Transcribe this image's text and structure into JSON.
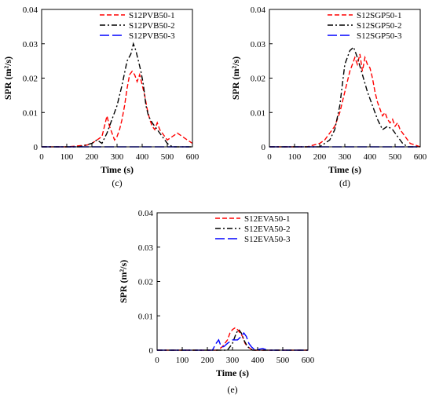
{
  "chart_data": [
    {
      "type": "line",
      "panel_label": "(c)",
      "xlabel": "Time (s)",
      "ylabel": "SPR (m²/s)",
      "xlim": [
        0,
        600
      ],
      "ylim": [
        0,
        0.04
      ],
      "xticks": [
        0,
        100,
        200,
        300,
        400,
        500,
        600
      ],
      "yticks": [
        0,
        0.01,
        0.02,
        0.03,
        0.04
      ],
      "xtick_labels": [
        "0",
        "100",
        "200",
        "300",
        "400",
        "500",
        "600"
      ],
      "ytick_labels": [
        "0",
        "0.01",
        "0.02",
        "0.03",
        "0.04"
      ],
      "grid": false,
      "legend_position": "top-right",
      "series": [
        {
          "name": "S12PVB50-1",
          "color": "#ff0000",
          "dash": "dashed",
          "points": [
            [
              0,
              0
            ],
            [
              100,
              0
            ],
            [
              180,
              0.0005
            ],
            [
              200,
              0.001
            ],
            [
              220,
              0.002
            ],
            [
              240,
              0.003
            ],
            [
              250,
              0.006
            ],
            [
              260,
              0.009
            ],
            [
              270,
              0.006
            ],
            [
              280,
              0.004
            ],
            [
              290,
              0.002
            ],
            [
              300,
              0.003
            ],
            [
              310,
              0.005
            ],
            [
              320,
              0.008
            ],
            [
              330,
              0.012
            ],
            [
              340,
              0.017
            ],
            [
              350,
              0.021
            ],
            [
              360,
              0.022
            ],
            [
              370,
              0.021
            ],
            [
              380,
              0.019
            ],
            [
              390,
              0.021
            ],
            [
              400,
              0.018
            ],
            [
              410,
              0.015
            ],
            [
              420,
              0.011
            ],
            [
              430,
              0.008
            ],
            [
              440,
              0.006
            ],
            [
              450,
              0.005
            ],
            [
              460,
              0.007
            ],
            [
              470,
              0.005
            ],
            [
              480,
              0.004
            ],
            [
              490,
              0.003
            ],
            [
              500,
              0.002
            ],
            [
              520,
              0.003
            ],
            [
              540,
              0.004
            ],
            [
              560,
              0.003
            ],
            [
              580,
              0.002
            ],
            [
              600,
              0.001
            ]
          ]
        },
        {
          "name": "S12PVB50-2",
          "color": "#000000",
          "dash": "dashdot",
          "points": [
            [
              0,
              0
            ],
            [
              150,
              0
            ],
            [
              200,
              0.001
            ],
            [
              220,
              0.002
            ],
            [
              240,
              0.001
            ],
            [
              260,
              0.004
            ],
            [
              280,
              0.008
            ],
            [
              300,
              0.012
            ],
            [
              320,
              0.018
            ],
            [
              340,
              0.025
            ],
            [
              355,
              0.027
            ],
            [
              365,
              0.03
            ],
            [
              375,
              0.028
            ],
            [
              385,
              0.025
            ],
            [
              395,
              0.022
            ],
            [
              405,
              0.018
            ],
            [
              415,
              0.012
            ],
            [
              425,
              0.009
            ],
            [
              440,
              0.007
            ],
            [
              460,
              0.005
            ],
            [
              480,
              0.003
            ],
            [
              500,
              0.001
            ],
            [
              520,
              0
            ],
            [
              600,
              0
            ]
          ]
        },
        {
          "name": "S12PVB50-3",
          "color": "#0000ff",
          "dash": "longdash",
          "points": [
            [
              0,
              0
            ],
            [
              600,
              0
            ]
          ]
        }
      ]
    },
    {
      "type": "line",
      "panel_label": "(d)",
      "xlabel": "Time (s)",
      "ylabel": "SPR (m²/s)",
      "xlim": [
        0,
        600
      ],
      "ylim": [
        0,
        0.04
      ],
      "xticks": [
        0,
        100,
        200,
        300,
        400,
        500,
        600
      ],
      "yticks": [
        0,
        0.01,
        0.02,
        0.03,
        0.04
      ],
      "xtick_labels": [
        "0",
        "100",
        "200",
        "300",
        "400",
        "500",
        "600"
      ],
      "ytick_labels": [
        "0",
        "0.01",
        "0.02",
        "0.03",
        "0.04"
      ],
      "grid": false,
      "legend_position": "top-right",
      "series": [
        {
          "name": "S12SGP50-1",
          "color": "#ff0000",
          "dash": "dashed",
          "points": [
            [
              0,
              0
            ],
            [
              150,
              0
            ],
            [
              200,
              0.001
            ],
            [
              220,
              0.002
            ],
            [
              240,
              0.004
            ],
            [
              260,
              0.006
            ],
            [
              280,
              0.01
            ],
            [
              300,
              0.016
            ],
            [
              320,
              0.022
            ],
            [
              340,
              0.026
            ],
            [
              350,
              0.024
            ],
            [
              360,
              0.027
            ],
            [
              370,
              0.022
            ],
            [
              380,
              0.026
            ],
            [
              390,
              0.024
            ],
            [
              400,
              0.023
            ],
            [
              410,
              0.02
            ],
            [
              420,
              0.016
            ],
            [
              430,
              0.013
            ],
            [
              440,
              0.011
            ],
            [
              450,
              0.009
            ],
            [
              460,
              0.01
            ],
            [
              470,
              0.008
            ],
            [
              480,
              0.007
            ],
            [
              490,
              0.008
            ],
            [
              500,
              0.006
            ],
            [
              510,
              0.007
            ],
            [
              520,
              0.005
            ],
            [
              540,
              0.003
            ],
            [
              560,
              0.001
            ],
            [
              600,
              0
            ]
          ]
        },
        {
          "name": "S12SGP50-2",
          "color": "#000000",
          "dash": "dashdot",
          "points": [
            [
              0,
              0
            ],
            [
              200,
              0
            ],
            [
              240,
              0.002
            ],
            [
              260,
              0.005
            ],
            [
              280,
              0.012
            ],
            [
              300,
              0.024
            ],
            [
              320,
              0.028
            ],
            [
              335,
              0.029
            ],
            [
              350,
              0.026
            ],
            [
              370,
              0.021
            ],
            [
              390,
              0.016
            ],
            [
              410,
              0.012
            ],
            [
              430,
              0.008
            ],
            [
              450,
              0.005
            ],
            [
              470,
              0.006
            ],
            [
              490,
              0.005
            ],
            [
              510,
              0.003
            ],
            [
              530,
              0.001
            ],
            [
              550,
              0
            ],
            [
              600,
              0
            ]
          ]
        },
        {
          "name": "S12SGP50-3",
          "color": "#0000ff",
          "dash": "longdash",
          "points": [
            [
              0,
              0
            ],
            [
              600,
              0
            ]
          ]
        }
      ]
    },
    {
      "type": "line",
      "panel_label": "(e)",
      "xlabel": "Time (s)",
      "ylabel": "SPR (m²/s)",
      "xlim": [
        0,
        600
      ],
      "ylim": [
        0,
        0.04
      ],
      "xticks": [
        0,
        100,
        200,
        300,
        400,
        500,
        600
      ],
      "yticks": [
        0,
        0.01,
        0.02,
        0.03,
        0.04
      ],
      "xtick_labels": [
        "0",
        "100",
        "200",
        "300",
        "400",
        "500",
        "600"
      ],
      "ytick_labels": [
        "0",
        "0.01",
        "0.02",
        "0.03",
        "0.04"
      ],
      "grid": false,
      "legend_position": "top-right",
      "series": [
        {
          "name": "S12EVA50-1",
          "color": "#ff0000",
          "dash": "dashed",
          "points": [
            [
              0,
              0
            ],
            [
              240,
              0
            ],
            [
              260,
              0.001
            ],
            [
              280,
              0.003
            ],
            [
              290,
              0.005
            ],
            [
              300,
              0.006
            ],
            [
              310,
              0.0065
            ],
            [
              320,
              0.006
            ],
            [
              330,
              0.005
            ],
            [
              340,
              0.004
            ],
            [
              350,
              0.002
            ],
            [
              360,
              0.001
            ],
            [
              380,
              0
            ],
            [
              600,
              0
            ]
          ]
        },
        {
          "name": "S12EVA50-2",
          "color": "#000000",
          "dash": "dashdot",
          "points": [
            [
              0,
              0
            ],
            [
              280,
              0
            ],
            [
              300,
              0.002
            ],
            [
              315,
              0.005
            ],
            [
              325,
              0.006
            ],
            [
              335,
              0.005
            ],
            [
              345,
              0.003
            ],
            [
              360,
              0.001
            ],
            [
              380,
              0
            ],
            [
              600,
              0
            ]
          ]
        },
        {
          "name": "S12EVA50-3",
          "color": "#0000ff",
          "dash": "longdash",
          "points": [
            [
              0,
              0
            ],
            [
              220,
              0
            ],
            [
              235,
              0.002
            ],
            [
              245,
              0.003
            ],
            [
              255,
              0.001
            ],
            [
              265,
              0.001
            ],
            [
              280,
              0.002
            ],
            [
              300,
              0.003
            ],
            [
              320,
              0.003
            ],
            [
              335,
              0.004
            ],
            [
              345,
              0.005
            ],
            [
              355,
              0.004
            ],
            [
              365,
              0.002
            ],
            [
              375,
              0.001
            ],
            [
              390,
              0
            ],
            [
              420,
              0.0005
            ],
            [
              440,
              0
            ],
            [
              600,
              0
            ]
          ]
        }
      ]
    }
  ]
}
